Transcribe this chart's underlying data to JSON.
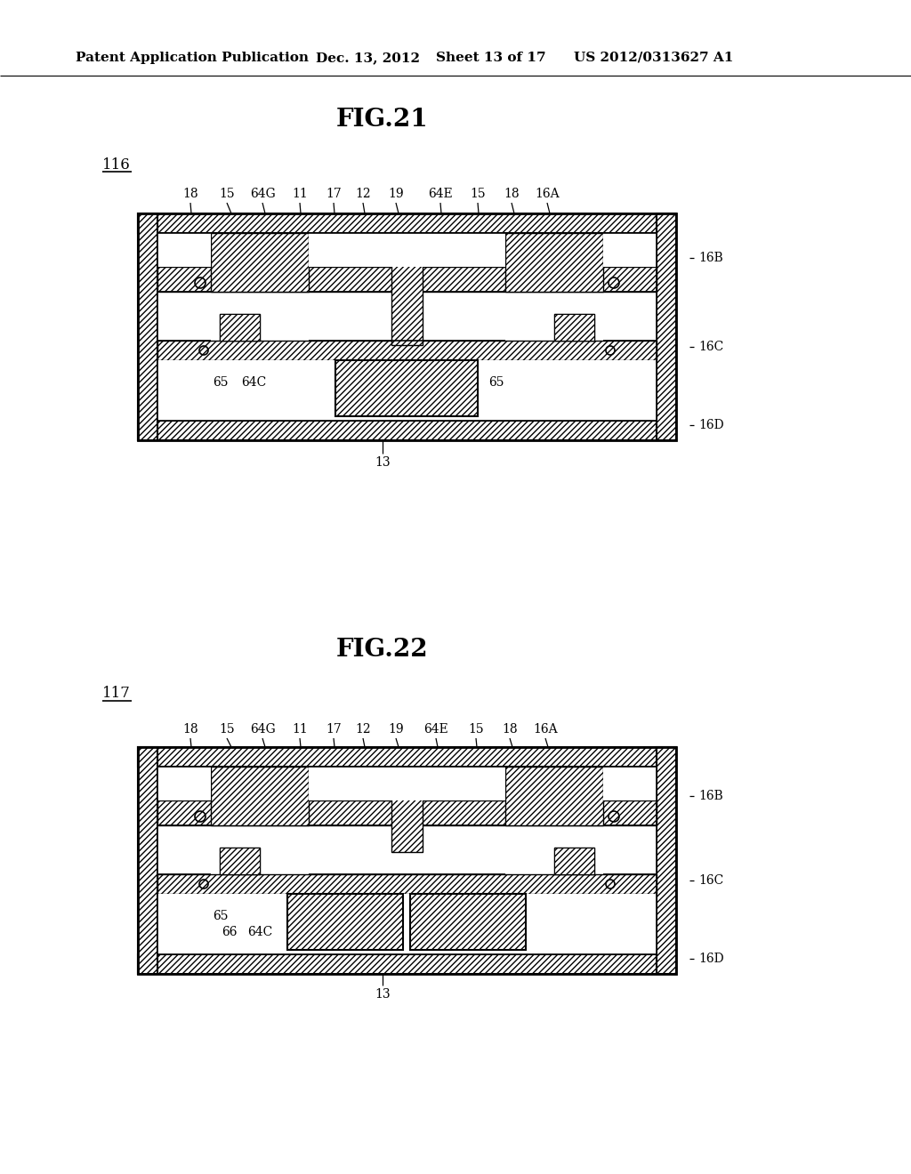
{
  "bg_color": "#ffffff",
  "header_text": "Patent Application Publication",
  "header_date": "Dec. 13, 2012",
  "header_sheet": "Sheet 13 of 17",
  "header_patent": "US 2012/0313627 A1",
  "fig21_title": "FIG.21",
  "fig21_label": "116",
  "fig22_title": "FIG.22",
  "fig22_label": "117"
}
